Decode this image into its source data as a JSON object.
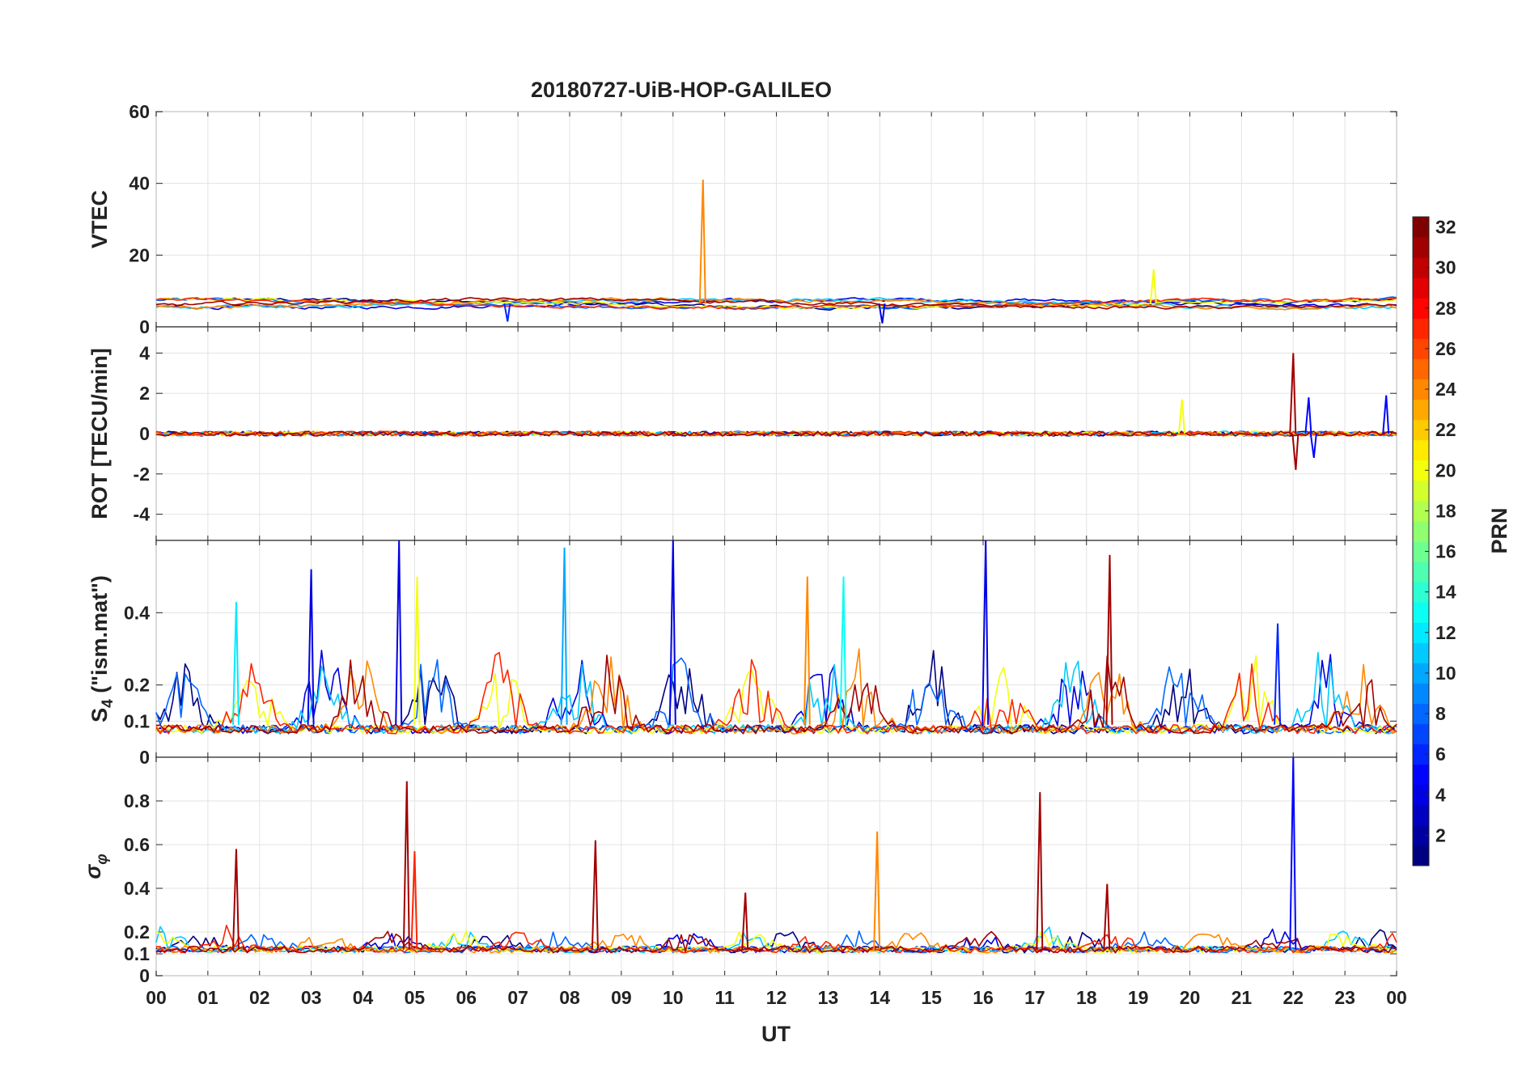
{
  "chart_data": {
    "type": "line",
    "title": "20180727-UiB-HOP-GALILEO",
    "xlabel": "UT",
    "x_tick_labels": [
      "00",
      "01",
      "02",
      "03",
      "04",
      "05",
      "06",
      "07",
      "08",
      "09",
      "10",
      "11",
      "12",
      "13",
      "14",
      "15",
      "16",
      "17",
      "18",
      "19",
      "20",
      "21",
      "22",
      "23",
      "00"
    ],
    "xlim_hours": [
      0,
      24
    ],
    "grid": true,
    "colorbar": {
      "label": "PRN",
      "range": [
        1,
        32
      ],
      "tick_labels": [
        "2",
        "4",
        "6",
        "8",
        "10",
        "12",
        "14",
        "16",
        "18",
        "20",
        "22",
        "24",
        "26",
        "28",
        "30",
        "32"
      ],
      "colormap": "jet"
    },
    "panels": [
      {
        "id": "vtec",
        "ylabel": "VTEC",
        "ylim": [
          0,
          60
        ],
        "y_ticks": [
          0,
          20,
          40,
          60
        ],
        "y_tick_labels": [
          "0",
          "20",
          "40",
          "60"
        ],
        "baseline": 6.5,
        "noise": 0.6,
        "spikes": [
          {
            "hour": 10.58,
            "value": 41,
            "prn": 24
          },
          {
            "hour": 19.3,
            "value": 16,
            "prn": 20
          },
          {
            "hour": 6.8,
            "value": 1.5,
            "prn": 6
          },
          {
            "hour": 14.05,
            "value": 1,
            "prn": 4
          }
        ]
      },
      {
        "id": "rot",
        "ylabel": "ROT [TECU/min]",
        "ylim": [
          -5.3,
          5.3
        ],
        "y_ticks": [
          -4,
          -2,
          0,
          2,
          4
        ],
        "y_tick_labels": [
          "-4",
          "-2",
          "0",
          "2",
          "4"
        ],
        "baseline": 0,
        "noise": 0.12,
        "spikes": [
          {
            "hour": 22.0,
            "value": 4,
            "prn": 31
          },
          {
            "hour": 22.05,
            "value": -1.8,
            "prn": 31
          },
          {
            "hour": 22.3,
            "value": 1.8,
            "prn": 5
          },
          {
            "hour": 22.4,
            "value": -1.2,
            "prn": 5
          },
          {
            "hour": 23.8,
            "value": 1.9,
            "prn": 5
          },
          {
            "hour": 19.85,
            "value": 1.7,
            "prn": 20
          }
        ]
      },
      {
        "id": "s4",
        "ylabel": "S4 (\"ism.mat\")",
        "ylabel_main": "S",
        "ylabel_sub": "4",
        "ylabel_rest": " (\"ism.mat\")",
        "ylim": [
          0,
          0.6
        ],
        "y_ticks": [
          0,
          0.1,
          0.2,
          0.4
        ],
        "y_tick_labels": [
          "0",
          "0.1",
          "0.2",
          "0.4"
        ],
        "baseline": 0.09,
        "noise": 0.05,
        "spikes": [
          {
            "hour": 4.7,
            "value": 0.6,
            "prn": 4
          },
          {
            "hour": 5.05,
            "value": 0.5,
            "prn": 20
          },
          {
            "hour": 7.9,
            "value": 0.58,
            "prn": 10
          },
          {
            "hour": 10.0,
            "value": 0.6,
            "prn": 4
          },
          {
            "hour": 12.6,
            "value": 0.5,
            "prn": 24
          },
          {
            "hour": 13.3,
            "value": 0.5,
            "prn": 13
          },
          {
            "hour": 16.05,
            "value": 0.6,
            "prn": 4
          },
          {
            "hour": 18.45,
            "value": 0.56,
            "prn": 31
          },
          {
            "hour": 3.0,
            "value": 0.52,
            "prn": 4
          },
          {
            "hour": 1.55,
            "value": 0.43,
            "prn": 12
          },
          {
            "hour": 21.7,
            "value": 0.37,
            "prn": 6
          }
        ]
      },
      {
        "id": "sigma_phi",
        "ylabel": "σφ",
        "ylabel_main": "σ",
        "ylabel_sub": "φ",
        "ylim": [
          0,
          1
        ],
        "y_ticks": [
          0,
          0.1,
          0.2,
          0.4,
          0.6,
          0.8
        ],
        "y_tick_labels": [
          "0",
          "0.1",
          "0.2",
          "0.4",
          "0.6",
          "0.8"
        ],
        "baseline": 0.12,
        "noise": 0.03,
        "spikes": [
          {
            "hour": 1.55,
            "value": 0.58,
            "prn": 31
          },
          {
            "hour": 4.85,
            "value": 0.89,
            "prn": 31
          },
          {
            "hour": 5.0,
            "value": 0.57,
            "prn": 27
          },
          {
            "hour": 8.5,
            "value": 0.62,
            "prn": 31
          },
          {
            "hour": 13.95,
            "value": 0.66,
            "prn": 24
          },
          {
            "hour": 17.1,
            "value": 0.84,
            "prn": 31
          },
          {
            "hour": 22.0,
            "value": 1.0,
            "prn": 5
          },
          {
            "hour": 18.4,
            "value": 0.42,
            "prn": 31
          },
          {
            "hour": 11.4,
            "value": 0.38,
            "prn": 31
          }
        ]
      }
    ],
    "series": [
      {
        "name": "PRN 1",
        "prn": 1
      },
      {
        "name": "PRN 4",
        "prn": 4
      },
      {
        "name": "PRN 8",
        "prn": 8
      },
      {
        "name": "PRN 11",
        "prn": 11
      },
      {
        "name": "PRN 20",
        "prn": 20
      },
      {
        "name": "PRN 24",
        "prn": 24
      },
      {
        "name": "PRN 27",
        "prn": 27
      },
      {
        "name": "PRN 31",
        "prn": 31
      }
    ]
  }
}
